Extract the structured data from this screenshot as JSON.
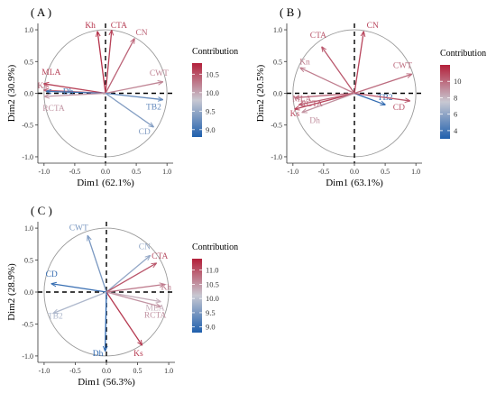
{
  "colorscale": {
    "low": "#1f5fad",
    "mid": "#c8c8d2",
    "high": "#b3203a"
  },
  "chart_data": [
    {
      "type": "scatter",
      "panel_label": "( A )",
      "xlabel": "Dim1 (62.1%)",
      "ylabel": "Dim2 (30.9%)",
      "xlim": [
        -1.1,
        1.1
      ],
      "ylim": [
        -1.1,
        1.1
      ],
      "xticks": [
        "-1.0",
        "-0.5",
        "0.0",
        "0.5",
        "1.0"
      ],
      "yticks": [
        "-1.0",
        "-0.5",
        "0.0",
        "0.5",
        "1.0"
      ],
      "legend_title": "Contribution",
      "legend_ticks": [
        "9.0",
        "9.5",
        "10.0",
        "10.5"
      ],
      "legend_range": [
        8.8,
        10.8
      ],
      "variables": [
        {
          "name": "Kh",
          "x": -0.13,
          "y": 0.97,
          "contrib": 10.7
        },
        {
          "name": "CTA",
          "x": 0.1,
          "y": 0.99,
          "contrib": 10.6
        },
        {
          "name": "CN",
          "x": 0.47,
          "y": 0.86,
          "contrib": 10.4
        },
        {
          "name": "CWT",
          "x": 0.93,
          "y": 0.18,
          "contrib": 10.2
        },
        {
          "name": "TB2",
          "x": 0.93,
          "y": -0.1,
          "contrib": 9.2
        },
        {
          "name": "CD",
          "x": 0.78,
          "y": -0.53,
          "contrib": 9.4
        },
        {
          "name": "MLA",
          "x": -1.0,
          "y": 0.15,
          "contrib": 10.6
        },
        {
          "name": "Ks",
          "x": -1.0,
          "y": 0.05,
          "contrib": 10.4
        },
        {
          "name": "Dh",
          "x": -0.96,
          "y": 0.03,
          "contrib": 9.0
        },
        {
          "name": "RCTA",
          "x": -0.99,
          "y": -0.05,
          "contrib": 10.1
        }
      ]
    },
    {
      "type": "scatter",
      "panel_label": "( B )",
      "xlabel": "Dim1 (63.1%)",
      "ylabel": "Dim2 (20.5%)",
      "xlim": [
        -1.1,
        1.1
      ],
      "ylim": [
        -1.1,
        1.1
      ],
      "xticks": [
        "-1.0",
        "-0.5",
        "0.0",
        "0.5",
        "1.0"
      ],
      "yticks": [
        "-1.0",
        "-0.5",
        "0.0",
        "0.5",
        "1.0"
      ],
      "legend_title": "Contribution",
      "legend_ticks": [
        "4",
        "6",
        "8",
        "10"
      ],
      "legend_range": [
        3,
        12
      ],
      "variables": [
        {
          "name": "CN",
          "x": 0.15,
          "y": 0.97,
          "contrib": 11.0
        },
        {
          "name": "CTA",
          "x": -0.53,
          "y": 0.73,
          "contrib": 10.5
        },
        {
          "name": "Kn",
          "x": -0.88,
          "y": 0.4,
          "contrib": 9.5
        },
        {
          "name": "CWT",
          "x": 0.93,
          "y": 0.3,
          "contrib": 10.0
        },
        {
          "name": "TB2",
          "x": 0.5,
          "y": -0.18,
          "contrib": 3.5
        },
        {
          "name": "CD",
          "x": 0.9,
          "y": -0.12,
          "contrib": 10.5
        },
        {
          "name": "MLA",
          "x": -0.97,
          "y": -0.07,
          "contrib": 10.0
        },
        {
          "name": "RCTA",
          "x": -0.9,
          "y": -0.18,
          "contrib": 10.3
        },
        {
          "name": "Ks",
          "x": -0.97,
          "y": -0.25,
          "contrib": 11.0
        },
        {
          "name": "Dh",
          "x": -0.85,
          "y": -0.3,
          "contrib": 9.0
        }
      ]
    },
    {
      "type": "scatter",
      "panel_label": "( C )",
      "xlabel": "Dim1 (56.3%)",
      "ylabel": "Dim2 (28.9%)",
      "xlim": [
        -1.1,
        1.1
      ],
      "ylim": [
        -1.1,
        1.1
      ],
      "xticks": [
        "-1.0",
        "-0.5",
        "0.0",
        "0.5",
        "1.0"
      ],
      "yticks": [
        "-1.0",
        "-0.5",
        "0.0",
        "0.5",
        "1.0"
      ],
      "legend_title": "Contribution",
      "legend_ticks": [
        "9.0",
        "9.5",
        "10.0",
        "10.5",
        "11.0"
      ],
      "legend_range": [
        8.8,
        11.4
      ],
      "variables": [
        {
          "name": "CWT",
          "x": -0.3,
          "y": 0.88,
          "contrib": 9.5
        },
        {
          "name": "CN",
          "x": 0.7,
          "y": 0.57,
          "contrib": 9.7
        },
        {
          "name": "CTA",
          "x": 0.8,
          "y": 0.45,
          "contrib": 11.0
        },
        {
          "name": "Kh",
          "x": 0.93,
          "y": 0.12,
          "contrib": 10.7
        },
        {
          "name": "MLA",
          "x": 0.87,
          "y": -0.15,
          "contrib": 10.3
        },
        {
          "name": "RCTA",
          "x": 0.87,
          "y": -0.23,
          "contrib": 10.5
        },
        {
          "name": "Ks",
          "x": 0.57,
          "y": -0.83,
          "contrib": 11.2
        },
        {
          "name": "Dh",
          "x": -0.02,
          "y": -0.92,
          "contrib": 8.9
        },
        {
          "name": "CD",
          "x": -0.88,
          "y": 0.13,
          "contrib": 9.0
        },
        {
          "name": "TB2",
          "x": -0.85,
          "y": -0.33,
          "contrib": 9.9
        }
      ]
    }
  ]
}
